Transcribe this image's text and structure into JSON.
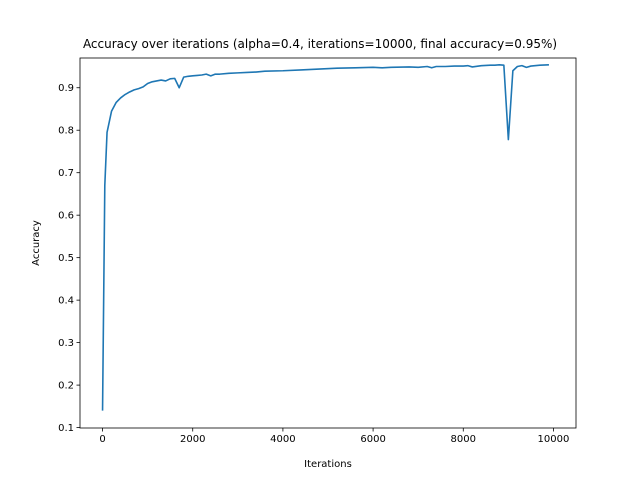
{
  "chart_data": {
    "type": "line",
    "title": "Accuracy over iterations (alpha=0.4, iterations=10000, final accuracy=0.95%)",
    "xlabel": "Iterations",
    "ylabel": "Accuracy",
    "xlim": [
      -500,
      10500
    ],
    "ylim": [
      0.099,
      0.97
    ],
    "xticks": [
      0,
      2000,
      4000,
      6000,
      8000,
      10000
    ],
    "xtick_labels": [
      "0",
      "2000",
      "4000",
      "6000",
      "8000",
      "10000"
    ],
    "yticks": [
      0.1,
      0.2,
      0.3,
      0.4,
      0.5,
      0.6,
      0.7,
      0.8,
      0.9
    ],
    "ytick_labels": [
      "0.1",
      "0.2",
      "0.3",
      "0.4",
      "0.5",
      "0.6",
      "0.7",
      "0.8",
      "0.9"
    ],
    "grid": false,
    "line_color": "#1f77b4",
    "series": [
      {
        "x": [
          0,
          50,
          100,
          200,
          300,
          400,
          500,
          600,
          700,
          800,
          900,
          1000,
          1100,
          1200,
          1300,
          1400,
          1500,
          1600,
          1700,
          1800,
          1900,
          2000,
          2100,
          2200,
          2300,
          2400,
          2500,
          2600,
          2800,
          3000,
          3200,
          3400,
          3600,
          4000,
          4400,
          4800,
          5200,
          5600,
          6000,
          6200,
          6400,
          6800,
          7000,
          7200,
          7300,
          7400,
          7600,
          7800,
          8000,
          8100,
          8200,
          8400,
          8600,
          8700,
          8800,
          8900,
          9000,
          9100,
          9200,
          9300,
          9400,
          9500,
          9700,
          9900
        ],
        "y": [
          0.14,
          0.67,
          0.795,
          0.845,
          0.865,
          0.876,
          0.884,
          0.89,
          0.895,
          0.898,
          0.902,
          0.91,
          0.914,
          0.916,
          0.918,
          0.916,
          0.921,
          0.922,
          0.9,
          0.925,
          0.927,
          0.928,
          0.929,
          0.93,
          0.932,
          0.928,
          0.932,
          0.932,
          0.934,
          0.935,
          0.936,
          0.937,
          0.939,
          0.94,
          0.942,
          0.944,
          0.946,
          0.947,
          0.948,
          0.947,
          0.948,
          0.949,
          0.948,
          0.95,
          0.947,
          0.95,
          0.95,
          0.951,
          0.951,
          0.952,
          0.949,
          0.952,
          0.953,
          0.953,
          0.954,
          0.953,
          0.778,
          0.94,
          0.95,
          0.952,
          0.948,
          0.951,
          0.953,
          0.954
        ]
      }
    ]
  }
}
